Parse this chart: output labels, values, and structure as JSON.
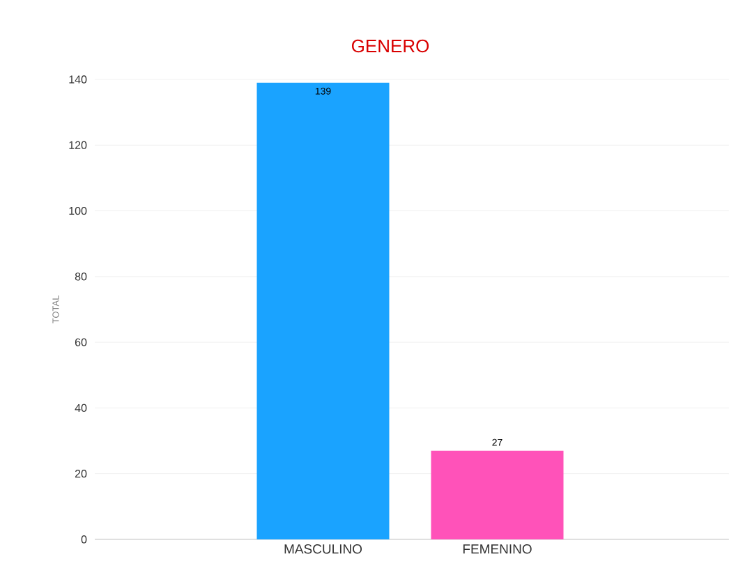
{
  "chart_data": {
    "type": "bar",
    "title": "GENERO",
    "ylabel": "TOTAL",
    "categories": [
      "MASCULINO",
      "FEMENINO"
    ],
    "values": [
      139,
      27
    ],
    "colors": [
      "#1aa3ff",
      "#ff52b9"
    ],
    "ylim": [
      0,
      140
    ],
    "yticks": [
      0,
      20,
      40,
      60,
      80,
      100,
      120,
      140
    ],
    "grid": "y",
    "data_labels": true
  }
}
